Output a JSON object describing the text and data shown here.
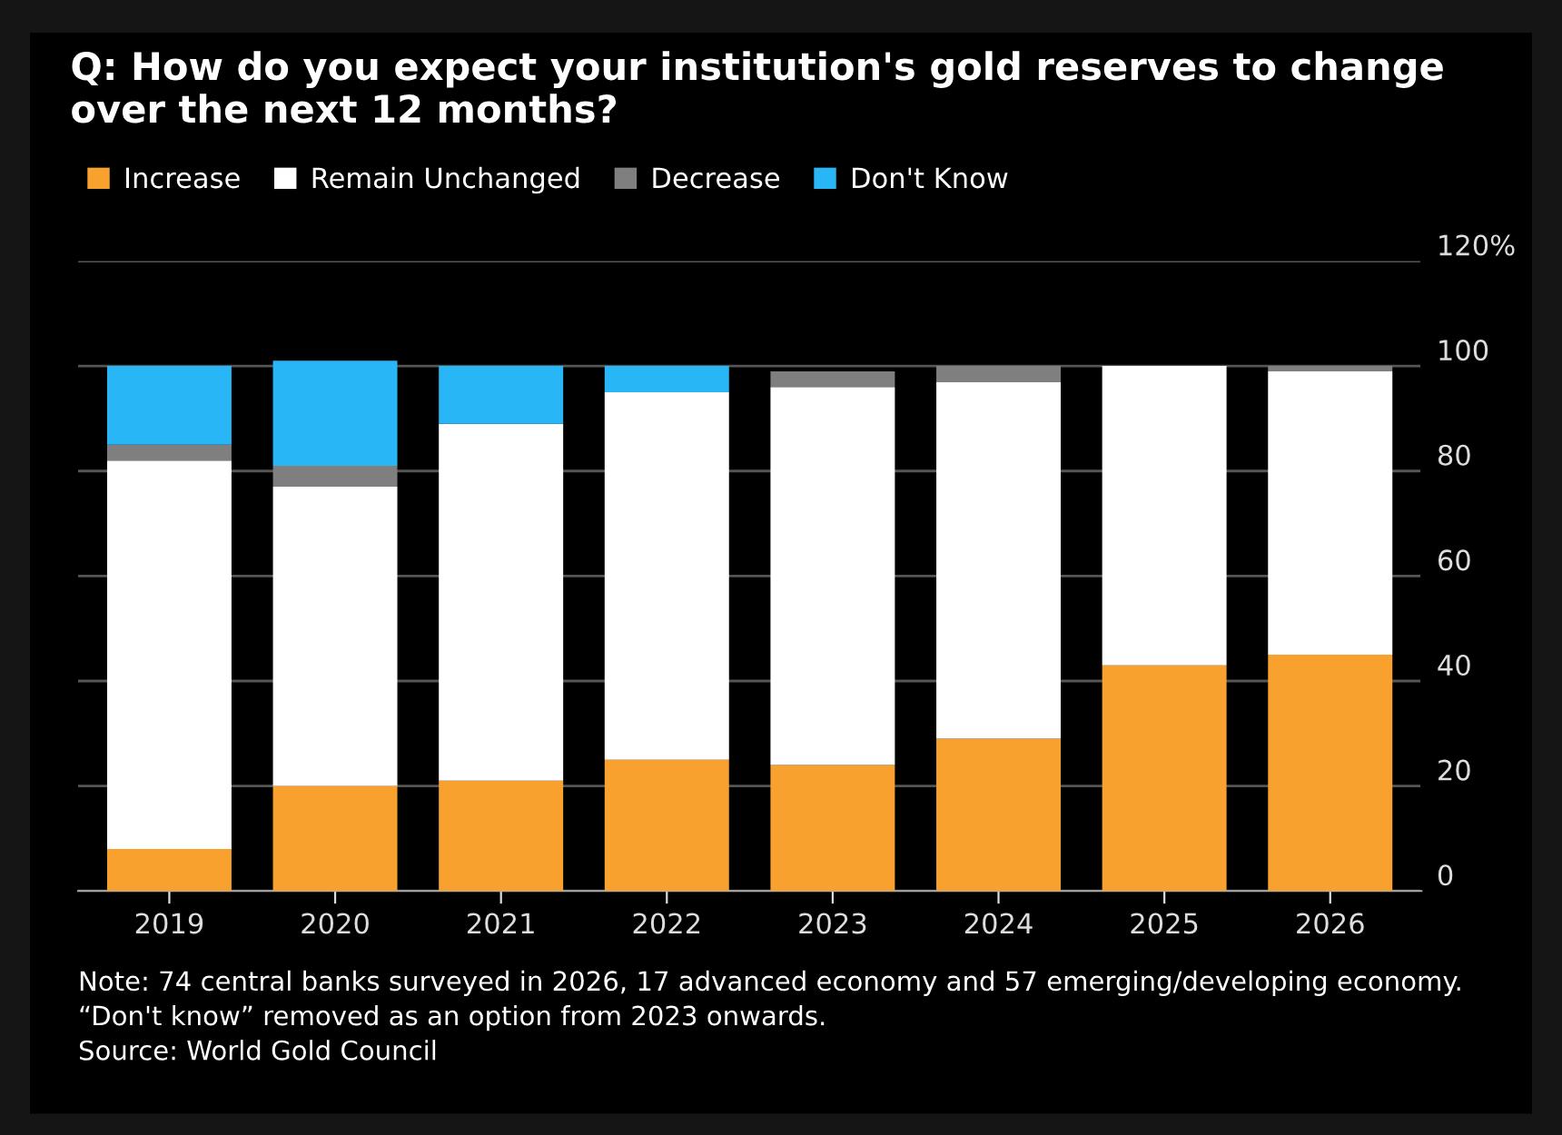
{
  "chart_data": {
    "type": "bar",
    "title": "Q: How do you expect your institution's gold reserves to change\nover the next 12 months?",
    "categories": [
      "2019",
      "2020",
      "2021",
      "2022",
      "2023",
      "2024",
      "2025",
      "2026"
    ],
    "stacked": true,
    "series": [
      {
        "name": "Increase",
        "color": "#f9a12e",
        "values": [
          8,
          20,
          21,
          25,
          24,
          29,
          43,
          45
        ]
      },
      {
        "name": "Remain Unchanged",
        "color": "#ffffff",
        "values": [
          74,
          57,
          68,
          70,
          72,
          68,
          57,
          54
        ]
      },
      {
        "name": "Decrease",
        "color": "#7f7f7f",
        "values": [
          3,
          4,
          null,
          null,
          3,
          3,
          null,
          1
        ]
      },
      {
        "name": "Don't Know",
        "color": "#29b6f6",
        "values": [
          15,
          20,
          11,
          5,
          null,
          null,
          null,
          null
        ]
      }
    ],
    "ylim": [
      0,
      120
    ],
    "yticks": [
      0,
      20,
      40,
      60,
      80,
      100,
      {
        "value": 120,
        "label": "120%"
      }
    ],
    "grid": "y",
    "legend": "top left",
    "annotations": [
      "Note: 74 central banks surveyed in 2026, 17 advanced economy and 57 emerging/developing economy.\n“Don't know” removed as an option from 2023 onwards.\nSource: World Gold Council"
    ]
  }
}
